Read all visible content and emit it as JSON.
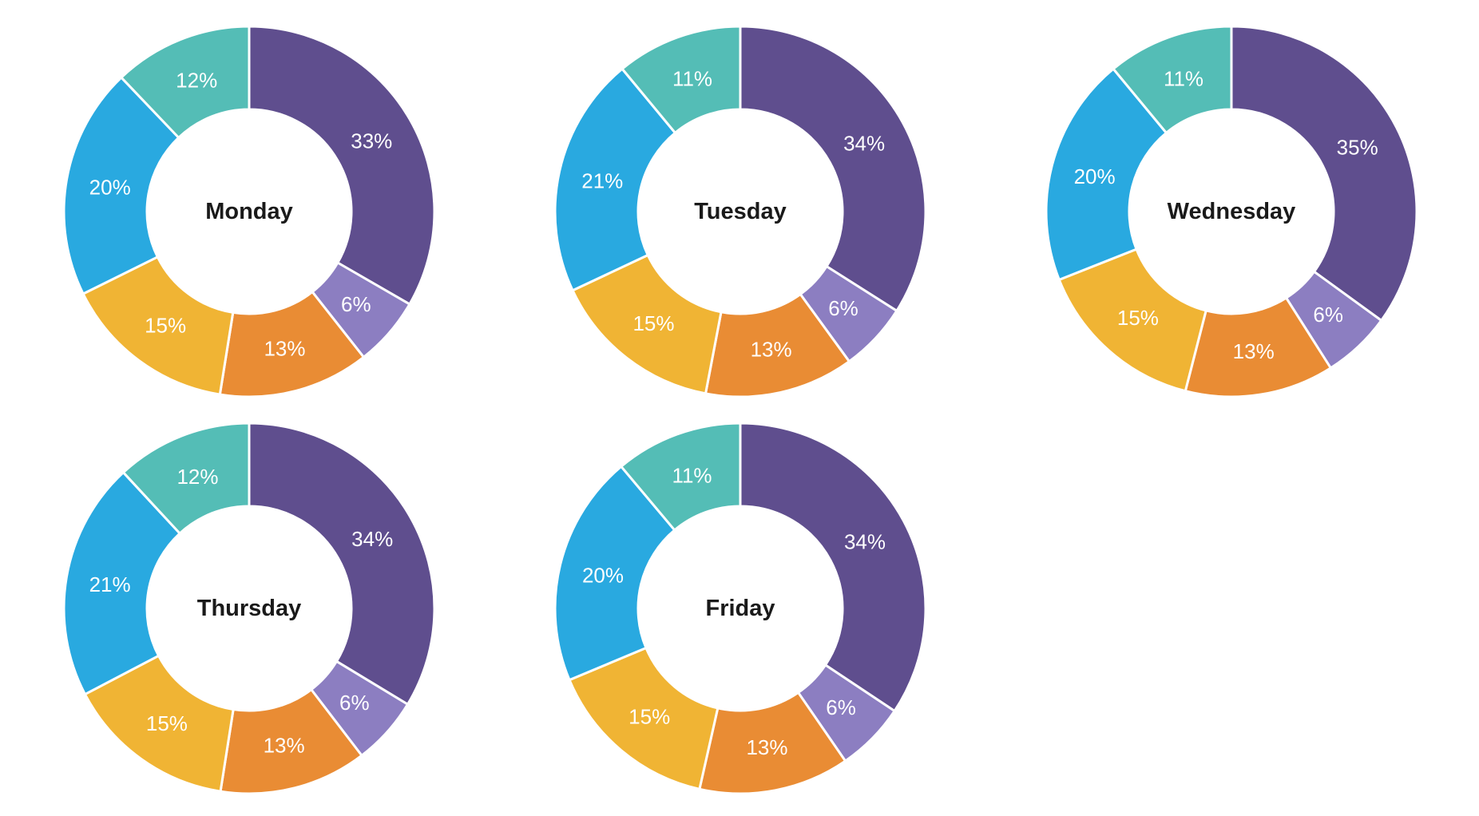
{
  "page": {
    "background": "#ffffff",
    "description": "Five donut charts showing percentage breakdowns for the weekdays Monday through Friday"
  },
  "chart_defaults": {
    "type": "donut",
    "unit": "%",
    "start_angle_deg": 0,
    "direction": "clockwise",
    "inner_radius_ratio": 0.55,
    "label_position": "inside",
    "label_color": "#ffffff",
    "title_color": "#1a1a1a",
    "slice_border_color": "#ffffff",
    "segment_colors": [
      "#5F4E8E",
      "#8C7EC1",
      "#E98C34",
      "#F0B434",
      "#29A9E0",
      "#54BDB6"
    ],
    "segment_color_names": [
      "dark-purple",
      "light-purple",
      "orange",
      "yellow",
      "blue",
      "teal"
    ],
    "legend": "none"
  },
  "chart_data": [
    {
      "type": "pie",
      "title": "Monday",
      "values": [
        33,
        6,
        13,
        15,
        20,
        12
      ],
      "labels": [
        "33%",
        "6%",
        "13%",
        "15%",
        "20%",
        "12%"
      ]
    },
    {
      "type": "pie",
      "title": "Tuesday",
      "values": [
        34,
        6,
        13,
        15,
        21,
        11
      ],
      "labels": [
        "34%",
        "6%",
        "13%",
        "15%",
        "21%",
        "11%"
      ]
    },
    {
      "type": "pie",
      "title": "Wednesday",
      "values": [
        35,
        6,
        13,
        15,
        20,
        11
      ],
      "labels": [
        "35%",
        "6%",
        "13%",
        "15%",
        "20%",
        "11%"
      ]
    },
    {
      "type": "pie",
      "title": "Thursday",
      "values": [
        34,
        6,
        13,
        15,
        21,
        12
      ],
      "labels": [
        "34%",
        "6%",
        "13%",
        "15%",
        "21%",
        "12%"
      ]
    },
    {
      "type": "pie",
      "title": "Friday",
      "values": [
        34,
        6,
        13,
        15,
        20,
        11
      ],
      "labels": [
        "34%",
        "6%",
        "13%",
        "15%",
        "20%",
        "11%"
      ]
    }
  ]
}
